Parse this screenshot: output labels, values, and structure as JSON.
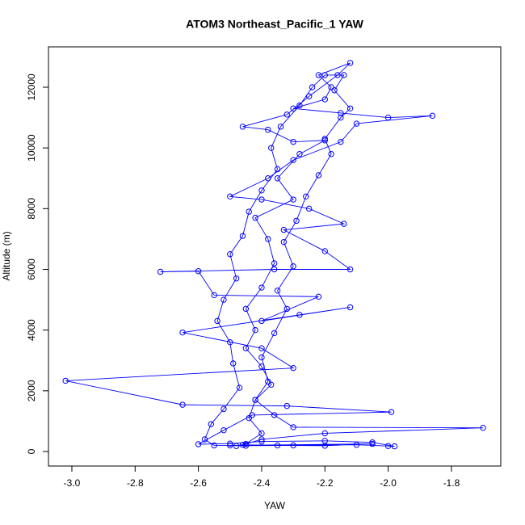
{
  "chart_data": {
    "type": "line",
    "title": "ATOM3 Northeast_Pacific_1 YAW",
    "x_label": "YAW",
    "y_label": "Altitude (m)",
    "color": "#0000ff",
    "marker": "open-circle",
    "grid": false,
    "xlim": [
      -3.074,
      -1.644
    ],
    "ylim": [
      -479,
      13330
    ],
    "xticks": [
      {
        "value": -3,
        "label": "-3.0"
      },
      -2.8,
      -2.6,
      -2.4,
      -2.2,
      {
        "value": -2,
        "label": "-2.0"
      },
      -1.8
    ],
    "yticks": [
      0,
      2000,
      4000,
      6000,
      8000,
      10000,
      12000
    ],
    "x": [
      -2.48,
      -2.45,
      -2.4,
      -2.44,
      -2.42,
      -2.38,
      -2.4,
      -2.36,
      -2.32,
      -2.35,
      -2.3,
      -2.33,
      -2.29,
      -2.26,
      -2.22,
      -2.18,
      -2.2,
      -2.15,
      -2.12,
      -2.17,
      -2.14,
      -2.2,
      -2.24,
      -2.28,
      -2.34,
      -2.37,
      -2.35,
      -2.4,
      -2.44,
      -2.46,
      -2.5,
      -2.48,
      -2.52,
      -2.54,
      -2.5,
      -2.49,
      -2.47,
      -2.52,
      -2.56,
      -2.58,
      -2.55,
      -2.45,
      -2.3,
      -2.1,
      -2.0,
      -1.98,
      -2.05,
      -2.2,
      -2.4,
      -2.5,
      -2.6,
      -2.52,
      -2.43,
      -1.99,
      -2.32,
      -2.65,
      -3.02,
      -2.3,
      -2.4,
      -2.65,
      -2.28,
      -2.12,
      -2.4,
      -2.22,
      -2.55,
      -2.6,
      -2.72,
      -2.36,
      -2.12,
      -2.2,
      -2.33,
      -2.14,
      -2.25,
      -2.4,
      -2.5,
      -2.38,
      -2.3,
      -2.15,
      -2.1,
      -1.86,
      -2.0,
      -2.15,
      -2.3,
      -2.2,
      -2.18,
      -2.22,
      -2.12,
      -2.16,
      -2.25,
      -2.32,
      -2.46,
      -2.38,
      -2.3,
      -2.2,
      -2.28,
      -2.35,
      -2.3,
      -2.42,
      -2.38,
      -2.36,
      -2.4,
      -2.45,
      -2.42,
      -2.45,
      -2.4,
      -2.37,
      -2.42,
      -2.36,
      -2.3,
      -1.7,
      -2.2,
      -2.4,
      -2.46,
      -2.35,
      -2.2,
      -2.05,
      -2.5
    ],
    "values": [
      180,
      250,
      600,
      1100,
      1700,
      2300,
      3100,
      3900,
      4700,
      5300,
      6100,
      6900,
      7600,
      8400,
      9100,
      9800,
      10300,
      11000,
      11300,
      11900,
      12400,
      12400,
      12000,
      11400,
      10700,
      10000,
      9300,
      8600,
      7900,
      7100,
      6500,
      5700,
      5000,
      4300,
      3600,
      2900,
      2100,
      1400,
      900,
      400,
      200,
      190,
      200,
      220,
      180,
      170,
      300,
      350,
      330,
      260,
      240,
      700,
      1200,
      1300,
      1500,
      1540,
      2330,
      2750,
      3400,
      3920,
      4500,
      4750,
      4300,
      5100,
      5150,
      5940,
      5920,
      6000,
      6000,
      6600,
      7300,
      7500,
      8000,
      8300,
      8400,
      9000,
      9600,
      10200,
      10800,
      11060,
      11000,
      11150,
      11300,
      11600,
      12000,
      12400,
      12800,
      12400,
      11700,
      11100,
      10700,
      10600,
      10200,
      10250,
      9800,
      9000,
      8300,
      7700,
      7000,
      6200,
      5400,
      4700,
      4000,
      3400,
      2800,
      2200,
      1700,
      1200,
      800,
      780,
      600,
      400,
      220,
      200,
      190,
      250,
      200
    ]
  }
}
